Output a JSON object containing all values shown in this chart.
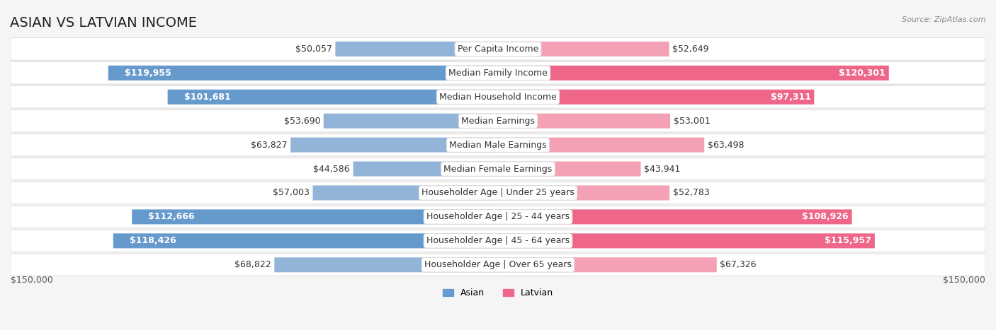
{
  "title": "ASIAN VS LATVIAN INCOME",
  "source": "Source: ZipAtlas.com",
  "categories": [
    "Per Capita Income",
    "Median Family Income",
    "Median Household Income",
    "Median Earnings",
    "Median Male Earnings",
    "Median Female Earnings",
    "Householder Age | Under 25 years",
    "Householder Age | 25 - 44 years",
    "Householder Age | 45 - 64 years",
    "Householder Age | Over 65 years"
  ],
  "asian_values": [
    50057,
    119955,
    101681,
    53690,
    63827,
    44586,
    57003,
    112666,
    118426,
    68822
  ],
  "latvian_values": [
    52649,
    120301,
    97311,
    53001,
    63498,
    43941,
    52783,
    108926,
    115957,
    67326
  ],
  "asian_labels": [
    "$50,057",
    "$119,955",
    "$101,681",
    "$53,690",
    "$63,827",
    "$44,586",
    "$57,003",
    "$112,666",
    "$118,426",
    "$68,822"
  ],
  "latvian_labels": [
    "$52,649",
    "$120,301",
    "$97,311",
    "$53,001",
    "$63,498",
    "$43,941",
    "$52,783",
    "$108,926",
    "$115,957",
    "$67,326"
  ],
  "max_value": 150000,
  "asian_color": "#91b4d8",
  "asian_color_dark": "#6699cc",
  "latvian_color": "#f4a0b5",
  "latvian_color_dark": "#ee6688",
  "bg_color": "#f5f5f5",
  "row_bg_color": "#efefef",
  "label_box_color": "#ffffff",
  "title_fontsize": 14,
  "label_fontsize": 9,
  "value_fontsize": 9
}
